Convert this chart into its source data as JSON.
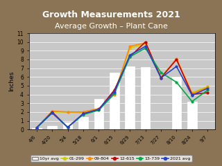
{
  "title1": "Growth Measurements 2021",
  "title2": "Average Growth – Plant Cane",
  "ylabel": "Inches",
  "x_labels": [
    "4/6",
    "4/20",
    "5/4",
    "5/18",
    "6/1",
    "6/15",
    "6/29",
    "7/13",
    "7/27",
    "8/10",
    "8/24",
    "9/7"
  ],
  "bar_values": [
    0.2,
    0.4,
    0.8,
    1.4,
    3.5,
    6.5,
    7.2,
    7.1,
    0,
    6.0,
    3.2,
    0
  ],
  "ylim": [
    0,
    11
  ],
  "series": {
    "10yr_avg": {
      "label": "10yr avg",
      "color": "#d0d0d0",
      "type": "bar"
    },
    "01-299": {
      "label": "01-299",
      "color": "#cccc00",
      "values": [
        0.2,
        2.0,
        2.0,
        1.9,
        2.2,
        4.2,
        9.3,
        9.8,
        6.0,
        8.0,
        4.2,
        4.9
      ]
    },
    "09-804": {
      "label": "09-804",
      "color": "#ff8800",
      "values": [
        0.2,
        2.1,
        2.0,
        2.0,
        2.4,
        4.0,
        9.5,
        9.9,
        5.9,
        8.1,
        4.1,
        4.8
      ]
    },
    "12-615": {
      "label": "12-615",
      "color": "#cc0000",
      "values": [
        0.2,
        2.0,
        0.25,
        1.8,
        2.3,
        4.5,
        8.3,
        10.0,
        5.9,
        8.0,
        4.0,
        4.2
      ]
    },
    "13-739": {
      "label": "13-739",
      "color": "#00aa44",
      "values": [
        0.2,
        1.9,
        0.25,
        1.7,
        2.2,
        4.1,
        8.3,
        9.3,
        6.5,
        5.4,
        3.2,
        4.5
      ]
    },
    "2021_avg": {
      "label": "2021 avg",
      "color": "#2244cc",
      "values": [
        0.2,
        1.9,
        0.25,
        1.8,
        2.3,
        4.3,
        8.5,
        9.5,
        5.9,
        7.2,
        3.9,
        4.7
      ]
    }
  },
  "background_color": "#b0b0b0",
  "plot_bg_color": "#c0c0c0",
  "title_color": "#ffffff",
  "title_bg": "none"
}
